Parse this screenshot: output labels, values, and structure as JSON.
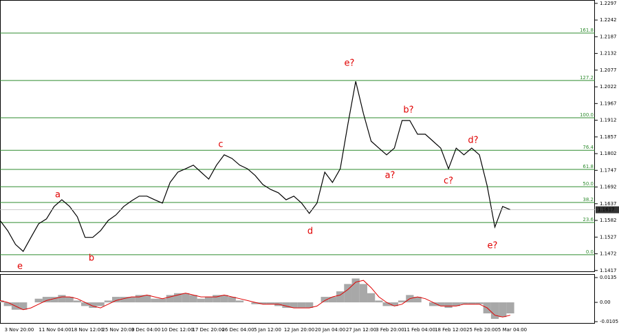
{
  "chart_data": [
    {
      "type": "line",
      "values": [
        1.1582,
        1.1548,
        1.1503,
        1.148,
        1.1526,
        1.1571,
        1.1587,
        1.1628,
        1.165,
        1.1628,
        1.1594,
        1.1526,
        1.1526,
        1.1548,
        1.1582,
        1.16,
        1.1628,
        1.1646,
        1.1662,
        1.1662,
        1.165,
        1.1639,
        1.1707,
        1.1741,
        1.1752,
        1.1764,
        1.1741,
        1.1718,
        1.1764,
        1.1798,
        1.1786,
        1.1764,
        1.1752,
        1.173,
        1.17,
        1.1684,
        1.1673,
        1.165,
        1.1662,
        1.1639,
        1.1605,
        1.1639,
        1.1741,
        1.1707,
        1.1752,
        1.19,
        1.204,
        1.1934,
        1.1843,
        1.182,
        1.1798,
        1.182,
        1.1911,
        1.1911,
        1.1866,
        1.1866,
        1.1843,
        1.182,
        1.1752,
        1.182,
        1.1798,
        1.182,
        1.1798,
        1.1696,
        1.156,
        1.1628,
        1.1617
      ],
      "color": "#000000",
      "ylim": [
        1.1412,
        1.2308
      ],
      "yticks": [
        1.2297,
        1.2242,
        1.2187,
        1.2132,
        1.2077,
        1.2022,
        1.1967,
        1.1912,
        1.1857,
        1.1802,
        1.1747,
        1.1692,
        1.1637,
        1.1582,
        1.1527,
        1.1472,
        1.1417
      ],
      "levels": [
        {
          "value": 1.2199,
          "label": "161.8"
        },
        {
          "value": 1.2043,
          "label": "127.2"
        },
        {
          "value": 1.192,
          "label": "100.0"
        },
        {
          "value": 1.1813,
          "label": "76.4"
        },
        {
          "value": 1.175,
          "label": "61.8"
        },
        {
          "value": 1.1693,
          "label": "50.0"
        },
        {
          "value": 1.1641,
          "label": "38.2"
        },
        {
          "value": 1.1575,
          "label": "23.6"
        },
        {
          "value": 1.1469,
          "label": "0.0"
        }
      ],
      "level_color": "#2e8b2e",
      "annotations": [
        "e",
        "a",
        "b",
        "c",
        "d",
        "e?",
        "a?",
        "b?",
        "c?",
        "d?",
        "e?"
      ],
      "annotation_color": "#e00000",
      "last_price": 1.1617,
      "time_labels": [
        "3 Nov 20:00",
        "11 Nov 04:00",
        "18 Nov 12:00",
        "25 Nov 20:00",
        "3 Dec 04:00",
        "10 Dec 12:00",
        "17 Dec 20:00",
        "26 Dec 04:00",
        "5 Jan 12:00",
        "12 Jan 20:00",
        "20 Jan 04:00",
        "27 Jan 12:00",
        "3 Feb 20:00",
        "11 Feb 04:00",
        "18 Feb 12:00",
        "25 Feb 20:00",
        "5 Mar 04:00"
      ]
    },
    {
      "type": "bar",
      "values": [
        0.001,
        -0.002,
        -0.004,
        -0.004,
        0.0,
        0.002,
        0.003,
        0.003,
        0.004,
        0.003,
        0.001,
        -0.002,
        -0.003,
        -0.002,
        0.001,
        0.003,
        0.003,
        0.003,
        0.004,
        0.004,
        0.002,
        0.002,
        0.004,
        0.005,
        0.005,
        0.004,
        0.002,
        0.003,
        0.004,
        0.004,
        0.003,
        0.001,
        0.0,
        -0.001,
        -0.001,
        -0.001,
        -0.002,
        -0.003,
        -0.003,
        -0.003,
        -0.003,
        0.0,
        0.003,
        0.003,
        0.006,
        0.01,
        0.013,
        0.01,
        0.005,
        0.001,
        -0.002,
        -0.002,
        0.001,
        0.004,
        0.003,
        0.0,
        -0.002,
        -0.002,
        -0.003,
        -0.002,
        -0.001,
        -0.001,
        -0.001,
        -0.006,
        -0.009,
        -0.008,
        -0.006
      ],
      "color": "#a8a8a8",
      "signal_values": [
        0.001,
        0.0,
        -0.002,
        -0.004,
        -0.003,
        -0.001,
        0.001,
        0.002,
        0.003,
        0.003,
        0.002,
        0.0,
        -0.002,
        -0.003,
        -0.001,
        0.001,
        0.002,
        0.003,
        0.003,
        0.004,
        0.003,
        0.002,
        0.003,
        0.004,
        0.005,
        0.004,
        0.003,
        0.003,
        0.003,
        0.004,
        0.003,
        0.002,
        0.001,
        0.0,
        -0.001,
        -0.001,
        -0.001,
        -0.002,
        -0.003,
        -0.003,
        -0.003,
        -0.002,
        0.001,
        0.003,
        0.004,
        0.007,
        0.011,
        0.012,
        0.008,
        0.003,
        0.0,
        -0.002,
        -0.001,
        0.002,
        0.003,
        0.002,
        0.0,
        -0.002,
        -0.002,
        -0.002,
        -0.001,
        -0.001,
        -0.001,
        -0.003,
        -0.007,
        -0.008,
        -0.007
      ],
      "signal_color": "#e00000",
      "ylim": [
        -0.0116,
        0.0154
      ],
      "yticks": [
        0.0135,
        {
          "value": 0,
          "label": "0.00"
        },
        -0.0105
      ]
    }
  ]
}
